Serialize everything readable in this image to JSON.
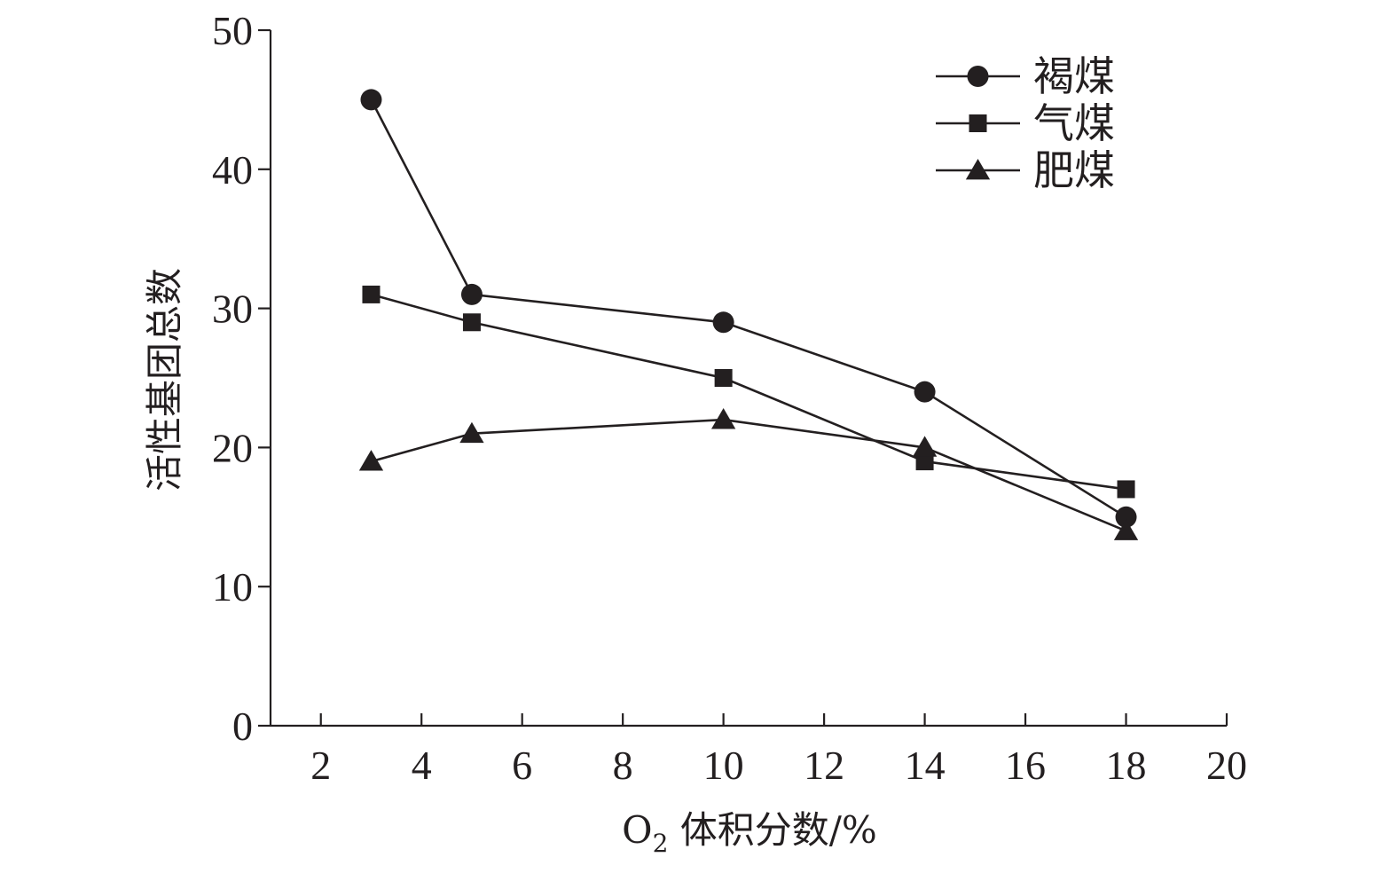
{
  "chart_data": {
    "type": "line",
    "title": "",
    "xlabel": {
      "prefix": "O",
      "subscript": "2",
      "suffix": " 体积分数/%"
    },
    "ylabel": "活性基团总数",
    "xlim": [
      1,
      20
    ],
    "ylim": [
      0,
      50
    ],
    "xticks": [
      2,
      4,
      6,
      8,
      10,
      12,
      14,
      16,
      18,
      20
    ],
    "yticks": [
      0,
      10,
      20,
      30,
      40,
      50
    ],
    "grid": false,
    "legend_position": "top-right",
    "x": [
      3,
      5,
      10,
      14,
      18
    ],
    "series": [
      {
        "name": "褐煤",
        "marker": "circle",
        "values": [
          45,
          31,
          29,
          24,
          15
        ]
      },
      {
        "name": "气煤",
        "marker": "square",
        "values": [
          31,
          29,
          25,
          19,
          17
        ]
      },
      {
        "name": "肥煤",
        "marker": "triangle",
        "values": [
          19,
          21,
          22,
          20,
          14
        ]
      }
    ],
    "colors": {
      "ink": "#231f20",
      "background": "#ffffff"
    }
  }
}
